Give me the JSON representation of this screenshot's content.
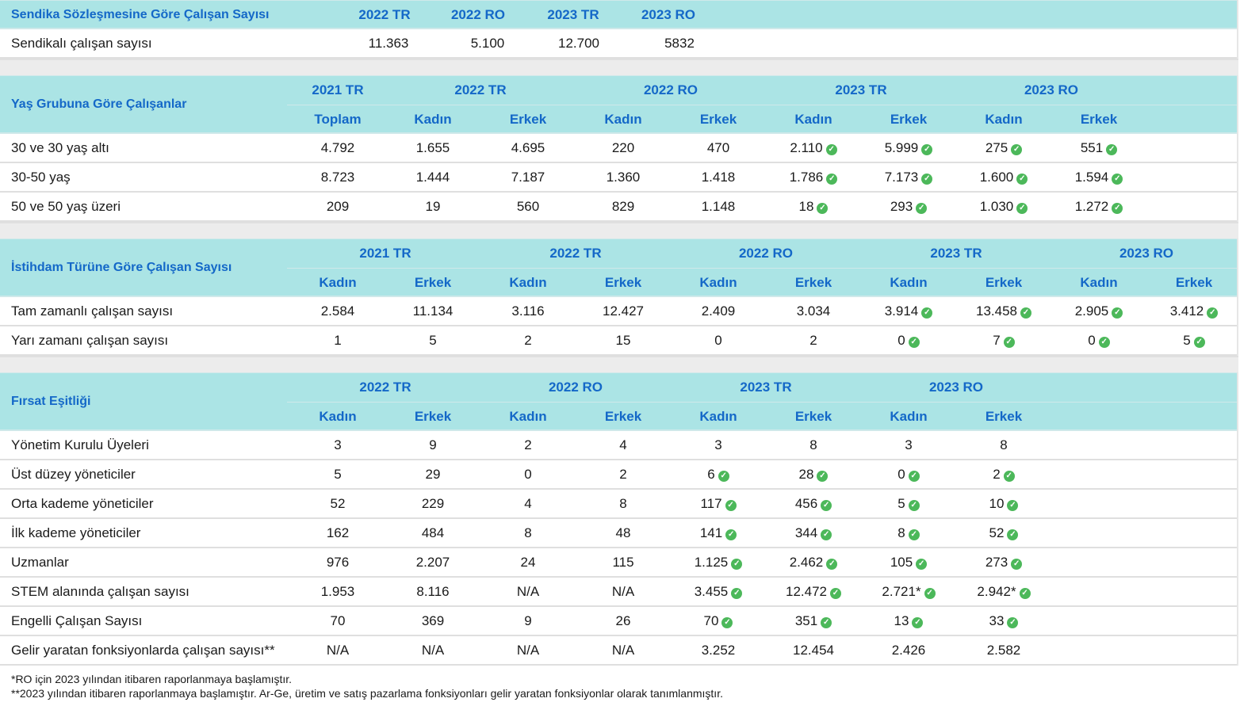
{
  "union": {
    "title": "Sendika Sözleşmesine Göre Çalışan Sayısı",
    "columns": [
      "2022 TR",
      "2022 RO",
      "2023 TR",
      "2023 RO"
    ],
    "row_label": "Sendikalı çalışan sayısı",
    "values": [
      "11.363",
      "5.100",
      "12.700",
      "5832"
    ]
  },
  "age": {
    "title": "Yaş Grubuna Göre Çalışanlar",
    "groups": [
      "2021 TR",
      "2022 TR",
      "2022 RO",
      "2023 TR",
      "2023 RO"
    ],
    "subheaders": [
      "Toplam",
      "Kadın",
      "Erkek",
      "Kadın",
      "Erkek",
      "Kadın",
      "Erkek",
      "Kadın",
      "Erkek"
    ],
    "rows": [
      {
        "label": "30 ve 30 yaş altı",
        "values": [
          "4.792",
          "1.655",
          "4.695",
          "220",
          "470",
          "2.110",
          "5.999",
          "275",
          "551"
        ]
      },
      {
        "label": "30-50 yaş",
        "values": [
          "8.723",
          "1.444",
          "7.187",
          "1.360",
          "1.418",
          "1.786",
          "7.173",
          "1.600",
          "1.594"
        ]
      },
      {
        "label": "50 ve 50 yaş üzeri",
        "values": [
          "209",
          "19",
          "560",
          "829",
          "1.148",
          "18",
          "293",
          "1.030",
          "1.272"
        ]
      }
    ]
  },
  "employment": {
    "title": "İstihdam Türüne Göre Çalışan Sayısı",
    "groups": [
      "2021 TR",
      "2022 TR",
      "2022 RO",
      "2023 TR",
      "2023 RO"
    ],
    "subheaders": [
      "Kadın",
      "Erkek",
      "Kadın",
      "Erkek",
      "Kadın",
      "Erkek",
      "Kadın",
      "Erkek",
      "Kadın",
      "Erkek"
    ],
    "rows": [
      {
        "label": "Tam zamanlı çalışan sayısı",
        "values": [
          "2.584",
          "11.134",
          "3.116",
          "12.427",
          "2.409",
          "3.034",
          "3.914",
          "13.458",
          "2.905",
          "3.412"
        ]
      },
      {
        "label": "Yarı zamanı çalışan sayısı",
        "values": [
          "1",
          "5",
          "2",
          "15",
          "0",
          "2",
          "0",
          "7",
          "0",
          "5"
        ]
      }
    ]
  },
  "equality": {
    "title": "Fırsat Eşitliği",
    "groups": [
      "2022 TR",
      "2022 RO",
      "2023 TR",
      "2023 RO"
    ],
    "subheaders": [
      "Kadın",
      "Erkek",
      "Kadın",
      "Erkek",
      "Kadın",
      "Erkek",
      "Kadın",
      "Erkek"
    ],
    "rows": [
      {
        "label": "Yönetim Kurulu Üyeleri",
        "values": [
          "3",
          "9",
          "2",
          "4",
          "3",
          "8",
          "3",
          "8"
        ],
        "checks": [
          false,
          false,
          false,
          false,
          false,
          false,
          false,
          false
        ]
      },
      {
        "label": "Üst düzey yöneticiler",
        "values": [
          "5",
          "29",
          "0",
          "2",
          "6",
          "28",
          "0",
          "2"
        ],
        "checks": [
          false,
          false,
          false,
          false,
          true,
          true,
          true,
          true
        ]
      },
      {
        "label": "Orta kademe yöneticiler",
        "values": [
          "52",
          "229",
          "4",
          "8",
          "117",
          "456",
          "5",
          "10"
        ],
        "checks": [
          false,
          false,
          false,
          false,
          true,
          true,
          true,
          true
        ]
      },
      {
        "label": "İlk kademe yöneticiler",
        "values": [
          "162",
          "484",
          "8",
          "48",
          "141",
          "344",
          "8",
          "52"
        ],
        "checks": [
          false,
          false,
          false,
          false,
          true,
          true,
          true,
          true
        ]
      },
      {
        "label": "Uzmanlar",
        "values": [
          "976",
          "2.207",
          "24",
          "115",
          "1.125",
          "2.462",
          "105",
          "273"
        ],
        "checks": [
          false,
          false,
          false,
          false,
          true,
          true,
          true,
          true
        ]
      },
      {
        "label": "STEM alanında çalışan sayısı",
        "values": [
          "1.953",
          "8.116",
          "N/A",
          "N/A",
          "3.455",
          "12.472",
          "2.721*",
          "2.942*"
        ],
        "checks": [
          false,
          false,
          false,
          false,
          true,
          true,
          true,
          true
        ]
      },
      {
        "label": "Engelli Çalışan Sayısı",
        "values": [
          "70",
          "369",
          "9",
          "26",
          "70",
          "351",
          "13",
          "33"
        ],
        "checks": [
          false,
          false,
          false,
          false,
          true,
          true,
          true,
          true
        ]
      },
      {
        "label": "Gelir yaratan fonksiyonlarda çalışan sayısı**",
        "values": [
          "N/A",
          "N/A",
          "N/A",
          "N/A",
          "3.252",
          "12.454",
          "2.426",
          "2.582"
        ],
        "checks": [
          false,
          false,
          false,
          false,
          false,
          false,
          false,
          false
        ]
      }
    ]
  },
  "footnotes": [
    "*RO için 2023 yılından itibaren raporlanmaya başlamıştır.",
    "**2023 yılından itibaren raporlanmaya başlamıştır. Ar-Ge, üretim ve satış pazarlama fonksiyonları gelir yaratan fonksiyonlar olarak tanımlanmıştır."
  ],
  "check_icon": "check-circle-icon",
  "colors": {
    "header_bg": "#abe4e5",
    "header_text": "#1468c8",
    "check": "#4cb85a"
  }
}
